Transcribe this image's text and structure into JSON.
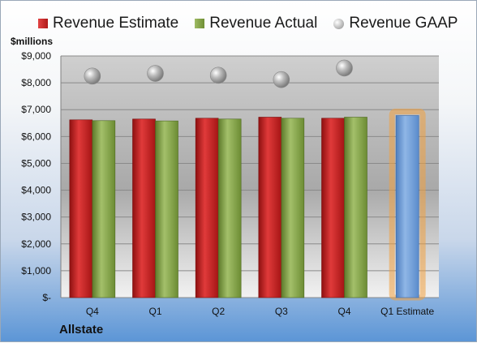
{
  "colors": {
    "estimate": "#c62626",
    "actual": "#86a64a",
    "gaap": "#a8a8a8",
    "forecast": "#6f9ed6",
    "forecast_glow": "#f0a040"
  },
  "legend": {
    "estimate_label": "Revenue Estimate",
    "actual_label": "Revenue Actual",
    "gaap_label": "Revenue GAAP"
  },
  "unit_label": "$millions",
  "company": "Allstate",
  "chart_data": {
    "type": "bar",
    "title": "",
    "xlabel": "",
    "ylabel": "$millions",
    "ylim": [
      0,
      9000
    ],
    "grid": true,
    "legend_position": "top",
    "y_tick_labels": [
      "$-",
      "$1,000",
      "$2,000",
      "$3,000",
      "$4,000",
      "$5,000",
      "$6,000",
      "$7,000",
      "$8,000",
      "$9,000"
    ],
    "categories": [
      "Q4",
      "Q1",
      "Q2",
      "Q3",
      "Q4",
      "Q1 Estimate"
    ],
    "series": [
      {
        "name": "Revenue Estimate",
        "type": "bar",
        "values": [
          6620,
          6650,
          6680,
          6720,
          6680,
          6780
        ]
      },
      {
        "name": "Revenue Actual",
        "type": "bar",
        "values": [
          6590,
          6580,
          6650,
          6680,
          6720,
          null
        ]
      },
      {
        "name": "Revenue GAAP",
        "type": "scatter",
        "values": [
          8250,
          8350,
          8280,
          8120,
          8550,
          null
        ]
      }
    ]
  }
}
